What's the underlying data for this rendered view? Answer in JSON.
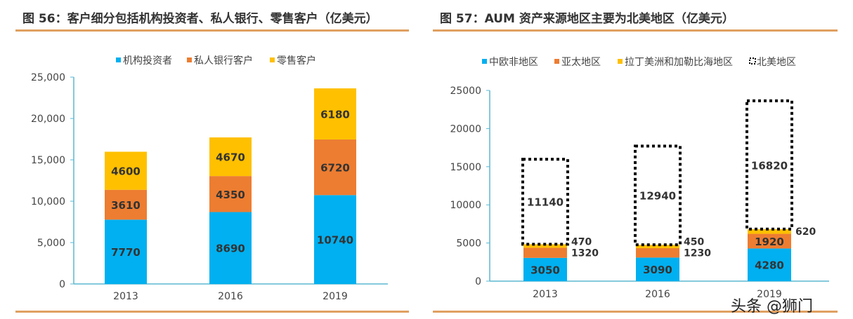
{
  "left": {
    "title": "图 56：客户细分包括机构投资者、私人银行、零售客户（亿美元）"
  },
  "right": {
    "title": "图 57：AUM 资产来源地区主要为北美地区（亿美元）"
  },
  "watermark": "头条 @狮门",
  "chart_data": [
    {
      "type": "bar",
      "stacked": true,
      "categories": [
        "2013",
        "2016",
        "2019"
      ],
      "series": [
        {
          "name": "机构投资者",
          "values": [
            7770,
            8690,
            10740
          ],
          "color": "#00b0f0"
        },
        {
          "name": "私人银行客户",
          "values": [
            3610,
            4350,
            6720
          ],
          "color": "#ed7d31"
        },
        {
          "name": "零售客户",
          "values": [
            4600,
            4670,
            6180
          ],
          "color": "#ffc000"
        }
      ],
      "ylim": [
        0,
        25000
      ],
      "yticks": [
        "0",
        "5,000",
        "10,000",
        "15,000",
        "20,000",
        "25,000"
      ],
      "legend": "top",
      "grid": false
    },
    {
      "type": "bar",
      "stacked": true,
      "categories": [
        "2013",
        "2016",
        "2019"
      ],
      "series": [
        {
          "name": "中欧非地区",
          "values": [
            3050,
            3090,
            4280
          ],
          "color": "#00b0f0"
        },
        {
          "name": "亚太地区",
          "values": [
            1320,
            1230,
            1920
          ],
          "color": "#ed7d31"
        },
        {
          "name": "拉丁美洲和加勒比海地区",
          "values": [
            470,
            450,
            620
          ],
          "color": "#ffc000"
        },
        {
          "name": "北美地区",
          "values": [
            11140,
            12940,
            16820
          ],
          "color": "dotted-outline"
        }
      ],
      "ylim": [
        0,
        25000
      ],
      "yticks": [
        "0",
        "5000",
        "10000",
        "15000",
        "20000",
        "25000"
      ],
      "legend": "top",
      "grid": false
    }
  ]
}
